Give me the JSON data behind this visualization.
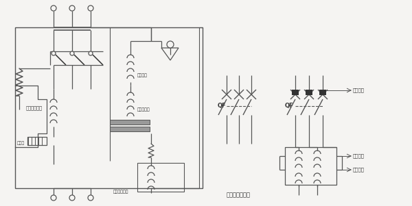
{
  "bg_color": "#f5f4f2",
  "line_color": "#555555",
  "dark_color": "#333333",
  "labels": {
    "guodian": "过电流脚口器",
    "tuokou": "脚口器",
    "kongzhi": "控制装置",
    "fenlv": "分劵脚口器",
    "quedian": "缺电压脚口器",
    "duanlu": "断路器图形符号",
    "qiaya": "欠压保护",
    "guofu1": "过负保护",
    "guofu2": "过负保护",
    "qf": "QF"
  },
  "lw": 0.9
}
